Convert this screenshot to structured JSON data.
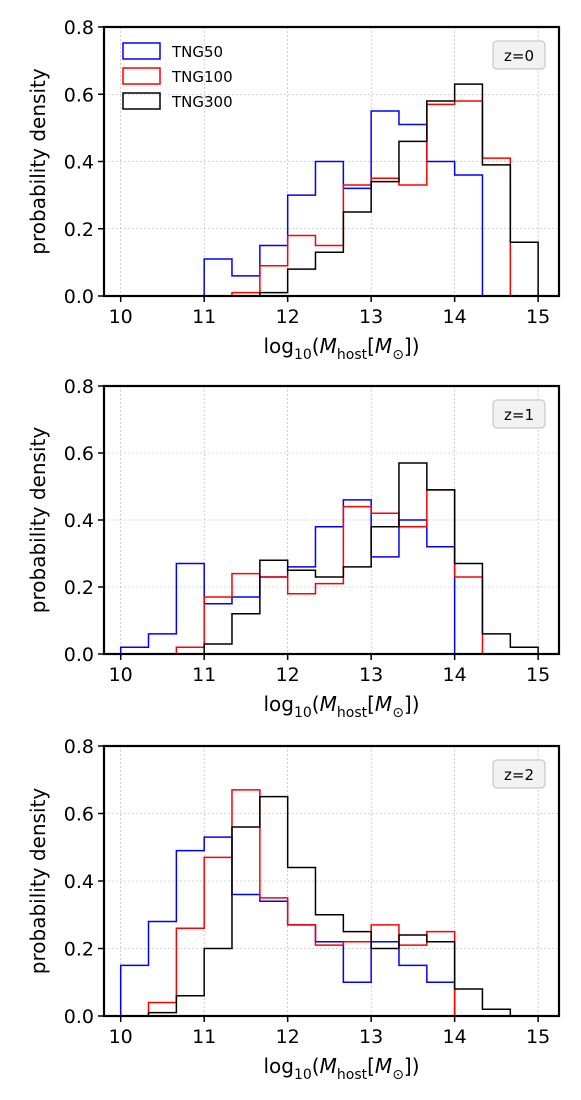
{
  "chart_data": [
    {
      "type": "histogram",
      "annotation": "z=0",
      "xlabel": "log₁₀(M_host[M_⊙])",
      "xlabel_parts": {
        "prefix": "log",
        "sub1": "10",
        "open": "(",
        "m": "M",
        "sub2": "host",
        "bracket_open": "[",
        "m2": "M",
        "sub3": "⊙",
        "close": "])"
      },
      "ylabel": "probability density",
      "xlim": [
        9.8,
        15.25
      ],
      "ylim": [
        0,
        0.8
      ],
      "xticks": [
        "10",
        "11",
        "12",
        "13",
        "14",
        "15"
      ],
      "yticks": [
        "0.0",
        "0.2",
        "0.4",
        "0.6",
        "0.8"
      ],
      "grid": true,
      "bin_edges": [
        10.0,
        10.333,
        10.667,
        11.0,
        11.333,
        11.667,
        12.0,
        12.333,
        12.667,
        13.0,
        13.333,
        13.667,
        14.0,
        14.333,
        14.667,
        15.0
      ],
      "legend": {
        "placement": "top-left",
        "entries": [
          "TNG50",
          "TNG100",
          "TNG300"
        ]
      },
      "series": [
        {
          "name": "TNG50",
          "color": "#0000ff",
          "values": [
            0,
            0,
            0,
            0.11,
            0.06,
            0.15,
            0.3,
            0.4,
            0.32,
            0.55,
            0.51,
            0.4,
            0.36,
            0,
            0
          ]
        },
        {
          "name": "TNG100",
          "color": "#ff0000",
          "values": [
            0,
            0,
            0,
            0,
            0.01,
            0.09,
            0.18,
            0.15,
            0.33,
            0.35,
            0.33,
            0.57,
            0.58,
            0.41,
            0
          ]
        },
        {
          "name": "TNG300",
          "color": "#000000",
          "values": [
            0,
            0,
            0,
            0,
            0,
            0.01,
            0.08,
            0.13,
            0.25,
            0.34,
            0.46,
            0.58,
            0.63,
            0.39,
            0.16
          ]
        }
      ]
    },
    {
      "type": "histogram",
      "annotation": "z=1",
      "xlabel": "log₁₀(M_host[M_⊙])",
      "xlabel_parts": {
        "prefix": "log",
        "sub1": "10",
        "open": "(",
        "m": "M",
        "sub2": "host",
        "bracket_open": "[",
        "m2": "M",
        "sub3": "⊙",
        "close": "])"
      },
      "ylabel": "probability density",
      "xlim": [
        9.8,
        15.25
      ],
      "ylim": [
        0,
        0.8
      ],
      "xticks": [
        "10",
        "11",
        "12",
        "13",
        "14",
        "15"
      ],
      "yticks": [
        "0.0",
        "0.2",
        "0.4",
        "0.6",
        "0.8"
      ],
      "grid": true,
      "bin_edges": [
        10.0,
        10.333,
        10.667,
        11.0,
        11.333,
        11.667,
        12.0,
        12.333,
        12.667,
        13.0,
        13.333,
        13.667,
        14.0,
        14.333,
        14.667,
        15.0
      ],
      "series": [
        {
          "name": "TNG50",
          "color": "#0000ff",
          "values": [
            0.02,
            0.06,
            0.27,
            0.15,
            0.17,
            0.23,
            0.26,
            0.38,
            0.46,
            0.29,
            0.4,
            0.32,
            0,
            0,
            0
          ]
        },
        {
          "name": "TNG100",
          "color": "#ff0000",
          "values": [
            0,
            0,
            0.02,
            0.17,
            0.24,
            0.23,
            0.18,
            0.21,
            0.44,
            0.42,
            0.38,
            0.49,
            0.23,
            0,
            0
          ]
        },
        {
          "name": "TNG300",
          "color": "#000000",
          "values": [
            0,
            0,
            0,
            0.03,
            0.12,
            0.28,
            0.25,
            0.23,
            0.26,
            0.38,
            0.57,
            0.49,
            0.27,
            0.06,
            0.02
          ]
        }
      ]
    },
    {
      "type": "histogram",
      "annotation": "z=2",
      "xlabel": "log₁₀(M_host[M_⊙])",
      "xlabel_parts": {
        "prefix": "log",
        "sub1": "10",
        "open": "(",
        "m": "M",
        "sub2": "host",
        "bracket_open": "[",
        "m2": "M",
        "sub3": "⊙",
        "close": "])"
      },
      "ylabel": "probability density",
      "xlim": [
        9.8,
        15.25
      ],
      "ylim": [
        0,
        0.8
      ],
      "xticks": [
        "10",
        "11",
        "12",
        "13",
        "14",
        "15"
      ],
      "yticks": [
        "0.0",
        "0.2",
        "0.4",
        "0.6",
        "0.8"
      ],
      "grid": true,
      "bin_edges": [
        10.0,
        10.333,
        10.667,
        11.0,
        11.333,
        11.667,
        12.0,
        12.333,
        12.667,
        13.0,
        13.333,
        13.667,
        14.0,
        14.333,
        14.667,
        15.0
      ],
      "series": [
        {
          "name": "TNG50",
          "color": "#0000ff",
          "values": [
            0.15,
            0.28,
            0.49,
            0.53,
            0.36,
            0.34,
            0.27,
            0.22,
            0.1,
            0.22,
            0.15,
            0.1,
            0,
            0,
            0
          ]
        },
        {
          "name": "TNG100",
          "color": "#ff0000",
          "values": [
            0,
            0.04,
            0.26,
            0.47,
            0.67,
            0.35,
            0.27,
            0.21,
            0.22,
            0.27,
            0.21,
            0.25,
            0,
            0,
            0
          ]
        },
        {
          "name": "TNG300",
          "color": "#000000",
          "values": [
            0,
            0.01,
            0.06,
            0.2,
            0.56,
            0.65,
            0.44,
            0.3,
            0.25,
            0.2,
            0.24,
            0.22,
            0.08,
            0.02,
            0
          ]
        }
      ]
    }
  ]
}
